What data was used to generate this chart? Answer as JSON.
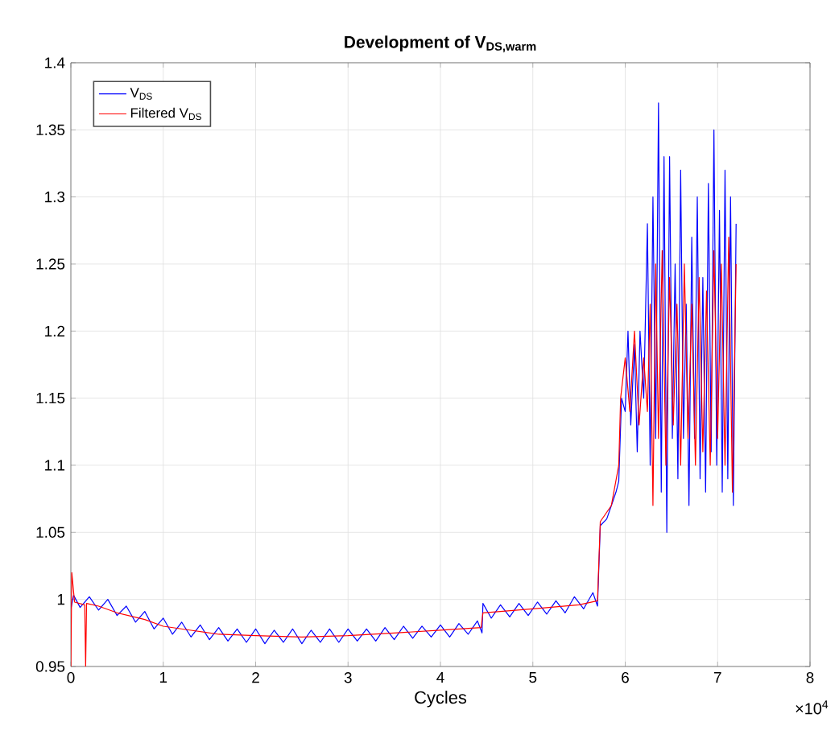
{
  "chart_data": {
    "type": "line",
    "title": "Development of V$_{DS,warm}$",
    "xlabel": "Cycles",
    "annotations": [
      "×10$^{4}$"
    ],
    "xlim": [
      0,
      8
    ],
    "ylim": [
      0.95,
      1.4
    ],
    "xticks": [
      0,
      1,
      2,
      3,
      4,
      5,
      6,
      7,
      8
    ],
    "yticks": [
      0.95,
      1,
      1.05,
      1.1,
      1.15,
      1.2,
      1.25,
      1.3,
      1.35,
      1.4
    ],
    "grid": true,
    "legend": "top left",
    "line_style": "solid",
    "marker": "none",
    "series": [
      {
        "name": "V$_{DS}$",
        "color": "#0000ff",
        "x": [
          0,
          0.03,
          0.1,
          0.2,
          0.3,
          0.4,
          0.5,
          0.6,
          0.7,
          0.8,
          0.9,
          1.0,
          1.1,
          1.2,
          1.3,
          1.4,
          1.5,
          1.6,
          1.7,
          1.8,
          1.9,
          2.0,
          2.1,
          2.2,
          2.3,
          2.4,
          2.5,
          2.6,
          2.7,
          2.8,
          2.9,
          3.0,
          3.1,
          3.2,
          3.3,
          3.4,
          3.5,
          3.6,
          3.7,
          3.8,
          3.9,
          4.0,
          4.1,
          4.2,
          4.3,
          4.4,
          4.45,
          4.46,
          4.55,
          4.65,
          4.75,
          4.85,
          4.95,
          5.05,
          5.15,
          5.25,
          5.35,
          5.45,
          5.55,
          5.65,
          5.7,
          5.73,
          5.8,
          5.85,
          5.9,
          5.93,
          5.96,
          6.0,
          6.03,
          6.06,
          6.1,
          6.13,
          6.16,
          6.2,
          6.24,
          6.27,
          6.3,
          6.33,
          6.36,
          6.39,
          6.42,
          6.45,
          6.48,
          6.51,
          6.54,
          6.57,
          6.6,
          6.63,
          6.66,
          6.69,
          6.72,
          6.75,
          6.78,
          6.81,
          6.84,
          6.87,
          6.9,
          6.93,
          6.96,
          6.99,
          7.02,
          7.05,
          7.08,
          7.11,
          7.14,
          7.17,
          7.2
        ],
        "values": [
          0.993,
          1.003,
          0.994,
          1.002,
          0.992,
          1.0,
          0.988,
          0.995,
          0.983,
          0.991,
          0.978,
          0.986,
          0.974,
          0.983,
          0.972,
          0.981,
          0.97,
          0.979,
          0.969,
          0.978,
          0.968,
          0.978,
          0.967,
          0.977,
          0.968,
          0.978,
          0.967,
          0.977,
          0.968,
          0.978,
          0.968,
          0.978,
          0.969,
          0.978,
          0.969,
          0.979,
          0.97,
          0.98,
          0.971,
          0.98,
          0.972,
          0.981,
          0.972,
          0.982,
          0.974,
          0.984,
          0.975,
          0.997,
          0.986,
          0.996,
          0.987,
          0.997,
          0.988,
          0.998,
          0.989,
          0.999,
          0.99,
          1.002,
          0.993,
          1.005,
          0.995,
          1.055,
          1.06,
          1.07,
          1.08,
          1.088,
          1.15,
          1.14,
          1.2,
          1.13,
          1.19,
          1.11,
          1.2,
          1.15,
          1.28,
          1.1,
          1.3,
          1.12,
          1.37,
          1.08,
          1.33,
          1.05,
          1.33,
          1.12,
          1.25,
          1.09,
          1.32,
          1.12,
          1.22,
          1.07,
          1.27,
          1.12,
          1.3,
          1.09,
          1.24,
          1.08,
          1.31,
          1.11,
          1.35,
          1.1,
          1.29,
          1.08,
          1.32,
          1.09,
          1.3,
          1.07,
          1.28
        ]
      },
      {
        "name": "Filtered V$_{DS}$",
        "color": "#ff0000",
        "x": [
          0,
          0.01,
          0.04,
          0.15,
          0.16,
          0.17,
          0.3,
          0.5,
          0.8,
          1.0,
          1.3,
          1.6,
          2.0,
          2.5,
          3.0,
          3.5,
          4.0,
          4.44,
          4.46,
          5.0,
          5.5,
          5.7,
          5.73,
          5.85,
          5.93,
          5.95,
          6.0,
          6.05,
          6.1,
          6.15,
          6.2,
          6.24,
          6.27,
          6.3,
          6.33,
          6.36,
          6.4,
          6.44,
          6.48,
          6.52,
          6.56,
          6.6,
          6.64,
          6.68,
          6.72,
          6.76,
          6.8,
          6.84,
          6.88,
          6.92,
          6.96,
          7.0,
          7.04,
          7.08,
          7.12,
          7.16,
          7.2
        ],
        "values": [
          0.95,
          1.02,
          0.998,
          0.996,
          0.95,
          0.997,
          0.995,
          0.99,
          0.985,
          0.98,
          0.977,
          0.974,
          0.973,
          0.972,
          0.973,
          0.975,
          0.977,
          0.979,
          0.99,
          0.993,
          0.996,
          0.999,
          1.058,
          1.07,
          1.1,
          1.15,
          1.18,
          1.14,
          1.2,
          1.13,
          1.18,
          1.14,
          1.22,
          1.07,
          1.25,
          1.12,
          1.26,
          1.1,
          1.24,
          1.13,
          1.22,
          1.1,
          1.25,
          1.12,
          1.22,
          1.1,
          1.24,
          1.11,
          1.23,
          1.1,
          1.26,
          1.12,
          1.25,
          1.1,
          1.27,
          1.08,
          1.25
        ]
      }
    ]
  }
}
